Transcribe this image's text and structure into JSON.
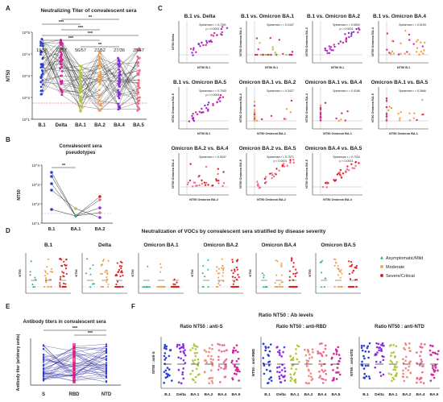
{
  "panel_letters": {
    "A": "A",
    "B": "B",
    "C": "C",
    "D": "D",
    "E": "E",
    "F": "F"
  },
  "colors": {
    "blue": "#2b3fd6",
    "magenta": "#d4249b",
    "purple": "#8a2be2",
    "orange": "#f0a04b",
    "yellowgreen": "#b8c43a",
    "teal": "#1fb08a",
    "red": "#e02020",
    "pink": "#f06a8a",
    "salmon": "#f08a80"
  },
  "panelA": {
    "title": "Neutralizing Titer of convalescent sera",
    "ylabel": "NT50",
    "yticks": [
      "10^5",
      "10^4",
      "10^3",
      "10^2",
      "10^1"
    ],
    "groups": [
      "B.1",
      "Delta",
      "BA.1",
      "BA.2",
      "BA.4",
      "BA.5"
    ],
    "fractions": [
      "19/58",
      "22/57",
      "56/57",
      "27/52",
      "27/36",
      "25/47"
    ],
    "sig": [
      "**",
      "***",
      "***",
      "***",
      "***",
      "**"
    ]
  },
  "panelB": {
    "title": "Convalescent sera\npseudotypes",
    "title1": "Convalescent sera",
    "title2": "pseudotypes",
    "ylabel": "NT50",
    "yticks": [
      "10^4",
      "10^3",
      "10^2",
      "10^1"
    ],
    "groups": [
      "B.1",
      "BA.1",
      "BA.2"
    ],
    "sig": "**"
  },
  "panelC": {
    "plots": [
      {
        "title": "B.1 vs. Delta",
        "spearman": "Spearman r = 0.7391",
        "p": "p < 0.0001",
        "xlabel": "NT50 B.1",
        "ylabel": "NT50 Delta"
      },
      {
        "title": "B.1 vs. Omicron BA.1",
        "spearman": "Spearman r = 0.2447",
        "p": "",
        "xlabel": "NT50 B.1",
        "ylabel": "NT50 Omicron BA.1"
      },
      {
        "title": "B.1 vs. Omicron BA.2",
        "spearman": "Spearman r = 0.5593",
        "p": "p < 0.0001",
        "xlabel": "NT50 B.1",
        "ylabel": "NT50 Omicron BA.2"
      },
      {
        "title": "B.1 vs. Omicron BA.4",
        "spearman": "Spearman r = 0.5109",
        "p": "",
        "xlabel": "NT50 B.1",
        "ylabel": "NT50 Omicron BA.4"
      },
      {
        "title": "B.1 vs. Omicron BA.5",
        "spearman": "Spearman r = 0.7005",
        "p": "p < 0.0001",
        "xlabel": "NT50 B.1",
        "ylabel": "NT50 Omicron BA.5"
      },
      {
        "title": "Omicron BA.1 vs. BA.2",
        "spearman": "Spearman r = 0.3427",
        "p": "",
        "xlabel": "NT50 Omicron BA.1",
        "ylabel": "NT50 Omicron BA.2"
      },
      {
        "title": "Omicron BA.1 vs. BA.4",
        "spearman": "Spearman r = 0.4166",
        "p": "",
        "xlabel": "NT50 Omicron BA.1",
        "ylabel": "NT50 Omicron BA.4"
      },
      {
        "title": "Omicron BA.1 vs. BA.5",
        "spearman": "Spearman r = 0.3666",
        "p": "",
        "xlabel": "NT50 Omicron BA.1",
        "ylabel": "NT50 Omicron BA.5"
      },
      {
        "title": "Omicron BA.2 vs. BA.4",
        "spearman": "Spearman r = 0.5047",
        "p": "",
        "xlabel": "NT50 Omicron BA.2",
        "ylabel": "NT50 Omicron BA.4"
      },
      {
        "title": "Omicron BA.2 vs. BA.5",
        "spearman": "Spearman r = 0.7571",
        "p": "p < 0.0001",
        "xlabel": "NT50 Omicron BA.2",
        "ylabel": "NT50 Omicron BA.5"
      },
      {
        "title": "Omicron BA.4 vs. BA.5",
        "spearman": "Spearman r = 0.7116",
        "p": "p < 0.0001",
        "xlabel": "NT50 Omicron BA.4",
        "ylabel": "NT50 Omicron BA.5"
      }
    ]
  },
  "panelD": {
    "title": "Neutralization of VOCs by convalescent sera stratified by disease severity",
    "plots": [
      "B.1",
      "Delta",
      "Omicron BA.1",
      "Omicron BA.2",
      "Omicron BA.4",
      "Omicron BA.5"
    ],
    "ylabel": "NT50",
    "legend": [
      "Asymptomatic/Mild",
      "Moderate",
      "Severe/Critical"
    ]
  },
  "panelE": {
    "title": "Antibody titers in convalescent sera",
    "ylabel": "Antibody titer (arbitrary units)",
    "groups": [
      "S",
      "RBD",
      "NTD"
    ],
    "sig": [
      "***",
      "***"
    ]
  },
  "panelF": {
    "title": "Ratio NT50 : Ab levels",
    "plots": [
      {
        "title": "Ratio NT50 : anti-S",
        "ylabel": "NT50 : anti-S"
      },
      {
        "title": "Ratio NT50 : anti-RBD",
        "ylabel": "NT50 : anti-RBD"
      },
      {
        "title": "Ratio NT50 : anti-NTD",
        "ylabel": "NT50 : anti-NTD"
      }
    ],
    "groups": [
      "B.1",
      "Delta",
      "BA.1",
      "BA.2",
      "BA.4",
      "BA.5"
    ]
  }
}
